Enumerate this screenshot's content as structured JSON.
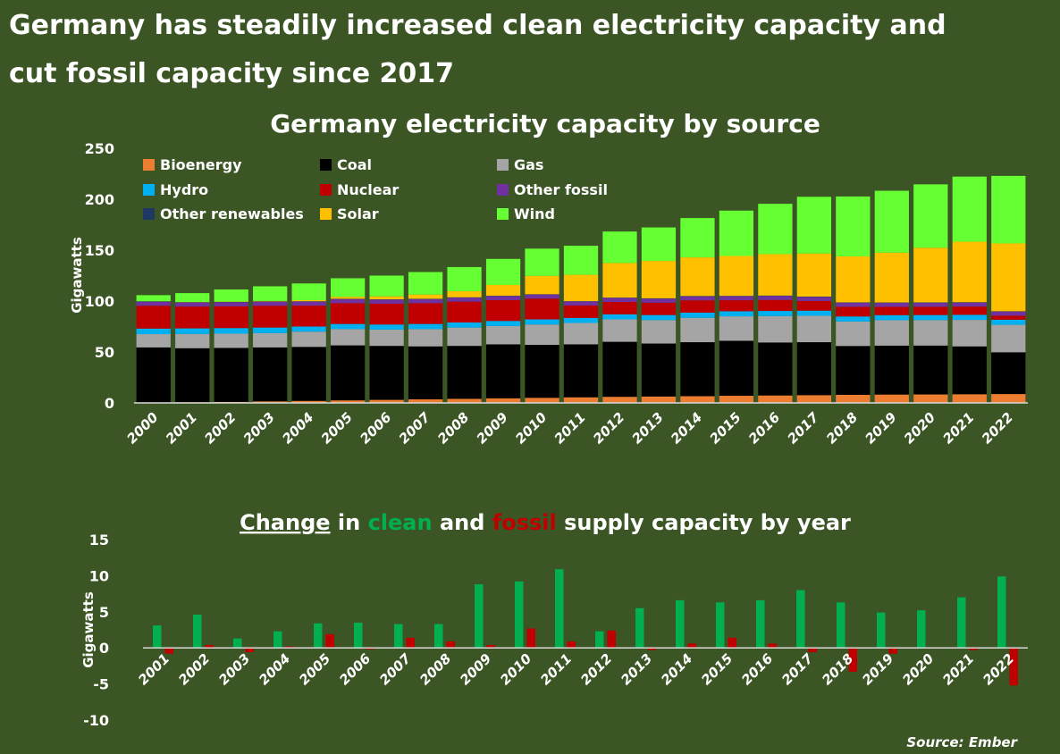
{
  "title_line1": "Germany has steadily increased clean electricity capacity and",
  "title_line2": "cut fossil capacity since 2017",
  "source": "Source: Ember",
  "chart_data": [
    {
      "type": "bar",
      "stacked": true,
      "title": "Germany electricity capacity by source",
      "ylabel": "Gigawatts",
      "ylim": [
        0,
        250
      ],
      "yticks": [
        0,
        50,
        100,
        150,
        200,
        250
      ],
      "legend": "top-left",
      "categories": [
        "2000",
        "2001",
        "2002",
        "2003",
        "2004",
        "2005",
        "2006",
        "2007",
        "2008",
        "2009",
        "2010",
        "2011",
        "2012",
        "2013",
        "2014",
        "2015",
        "2016",
        "2017",
        "2018",
        "2019",
        "2020",
        "2021",
        "2022"
      ],
      "series": [
        {
          "name": "Bioenergy",
          "color": "#ed7d31",
          "values": [
            0.5,
            0.7,
            1,
            1.5,
            2,
            2.5,
            3,
            3.5,
            4,
            4.5,
            5,
            5.5,
            6,
            6.3,
            6.6,
            7,
            7.3,
            7.6,
            7.9,
            8.2,
            8.3,
            8.5,
            8.7
          ]
        },
        {
          "name": "Coal",
          "color": "#000000",
          "values": [
            54,
            53,
            53,
            53,
            53,
            54,
            53,
            52,
            52,
            53,
            52,
            52,
            54,
            52,
            53,
            54,
            52,
            52,
            48,
            48,
            48,
            47,
            41
          ]
        },
        {
          "name": "Gas",
          "color": "#a5a5a5",
          "values": [
            13,
            14,
            14,
            14,
            15,
            16,
            16,
            17,
            18,
            18,
            20,
            21,
            22,
            23,
            24,
            24,
            26,
            26,
            24,
            25,
            25,
            26,
            27
          ]
        },
        {
          "name": "Hydro",
          "color": "#00b0f0",
          "values": [
            5.5,
            5.5,
            5.5,
            5.5,
            5,
            5,
            5,
            5,
            5,
            5,
            5,
            5,
            5,
            5,
            5,
            5,
            5,
            5,
            5,
            5,
            5,
            5,
            5
          ]
        },
        {
          "name": "Nuclear",
          "color": "#c00000",
          "values": [
            22.4,
            21.4,
            21.4,
            21.4,
            20.5,
            20.4,
            20.4,
            20.4,
            20.4,
            20.4,
            20.4,
            12.1,
            12.1,
            12.1,
            12.1,
            10.8,
            10.8,
            9.5,
            9.5,
            8.1,
            8.1,
            8.1,
            4
          ]
        },
        {
          "name": "Other fossil",
          "color": "#7030a0",
          "values": [
            4,
            4,
            4,
            4,
            4,
            4,
            4,
            4,
            4,
            4,
            4,
            4,
            4,
            4,
            4,
            4,
            4,
            4,
            4,
            4,
            4,
            4,
            4
          ]
        },
        {
          "name": "Other renewables",
          "color": "#203864",
          "values": [
            0.3,
            0.3,
            0.3,
            0.3,
            0.3,
            0.3,
            0.3,
            0.3,
            0.3,
            0.3,
            0.3,
            0.3,
            0.3,
            0.3,
            0.3,
            0.3,
            0.3,
            0.3,
            0.3,
            0.3,
            0.3,
            0.3,
            0.3
          ]
        },
        {
          "name": "Solar",
          "color": "#ffc000",
          "values": [
            0.1,
            0.2,
            0.3,
            0.4,
            1.1,
            2,
            2.9,
            4.2,
            6,
            10.6,
            18,
            25.9,
            34,
            36.7,
            37.9,
            39.2,
            40.7,
            42.3,
            45.2,
            48.9,
            53.7,
            59.4,
            66.6
          ]
        },
        {
          "name": "Wind",
          "color": "#66ff33",
          "values": [
            6,
            8.7,
            11.9,
            14.4,
            16.4,
            18.2,
            20.4,
            22.1,
            23.7,
            25.6,
            26.8,
            28.5,
            30.9,
            32.9,
            38.6,
            44.5,
            49.4,
            55.7,
            58.8,
            60.8,
            62.2,
            63.9,
            66.3
          ]
        }
      ]
    },
    {
      "type": "bar",
      "title_parts": [
        "Change",
        " in ",
        "clean",
        " and ",
        "fossil",
        " supply capacity by year"
      ],
      "title_colors": {
        "clean": "#00b050",
        "fossil": "#c00000"
      },
      "ylabel": "Gigawatts",
      "ylim": [
        -10,
        15
      ],
      "yticks": [
        -10,
        -5,
        0,
        5,
        10,
        15
      ],
      "categories": [
        "2001",
        "2002",
        "2003",
        "2004",
        "2005",
        "2006",
        "2007",
        "2008",
        "2009",
        "2010",
        "2011",
        "2012",
        "2013",
        "2014",
        "2015",
        "2016",
        "2017",
        "2018",
        "2019",
        "2020",
        "2021",
        "2022"
      ],
      "series": [
        {
          "key": "clean",
          "color": "#00b050",
          "values": [
            3.1,
            4.6,
            1.3,
            2.3,
            3.4,
            3.5,
            3.3,
            3.3,
            8.8,
            9.2,
            10.9,
            2.3,
            5.5,
            6.6,
            6.3,
            6.6,
            8,
            6.3,
            4.9,
            5.2,
            7,
            9.9
          ]
        },
        {
          "key": "fossil",
          "color": "#c00000",
          "values": [
            -0.8,
            0.4,
            -0.6,
            0.2,
            1.9,
            -0.2,
            1.4,
            0.9,
            0.4,
            2.7,
            0.9,
            2.4,
            -0.3,
            0.6,
            1.4,
            0.6,
            -0.6,
            -3.3,
            -0.8,
            0,
            -0.3,
            -5.2
          ]
        }
      ]
    }
  ]
}
